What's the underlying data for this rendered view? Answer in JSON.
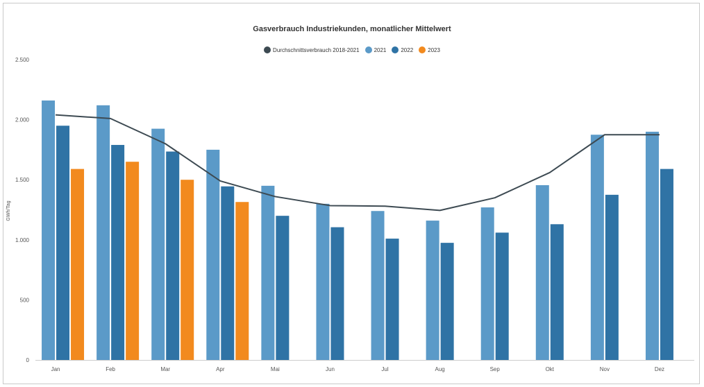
{
  "chart_data": {
    "type": "bar",
    "title": "Gasverbrauch Industriekunden, monatlicher Mittelwert",
    "ylabel": "GWh/Tag",
    "xlabel": "",
    "ylim": [
      0,
      2500
    ],
    "yticks": [
      0,
      500,
      1000,
      1500,
      2000,
      2500
    ],
    "ytick_labels": [
      "0",
      "500",
      "1.000",
      "1.500",
      "2.000",
      "2.500"
    ],
    "legend_position": "top-center",
    "grid": false,
    "categories": [
      "Jan",
      "Feb",
      "Mar",
      "Apr",
      "Mai",
      "Jun",
      "Jul",
      "Aug",
      "Sep",
      "Okt",
      "Nov",
      "Dez"
    ],
    "series": [
      {
        "name": "2021",
        "type": "bar",
        "color": "#5b9ac8",
        "values": [
          2160,
          2120,
          1925,
          1750,
          1450,
          1300,
          1240,
          1160,
          1270,
          1455,
          1875,
          1900
        ]
      },
      {
        "name": "2022",
        "type": "bar",
        "color": "#2f73a5",
        "values": [
          1950,
          1790,
          1735,
          1445,
          1200,
          1105,
          1010,
          975,
          1060,
          1130,
          1375,
          1590
        ]
      },
      {
        "name": "2023",
        "type": "bar",
        "color": "#f28a1e",
        "values": [
          1590,
          1650,
          1500,
          1315,
          null,
          null,
          null,
          null,
          null,
          null,
          null,
          null
        ]
      },
      {
        "name": "Durchschnittsverbrauch 2018-2021",
        "type": "line",
        "color": "#3d4a52",
        "values": [
          2040,
          2010,
          1800,
          1490,
          1360,
          1285,
          1280,
          1245,
          1350,
          1560,
          1875,
          1875
        ]
      }
    ]
  }
}
